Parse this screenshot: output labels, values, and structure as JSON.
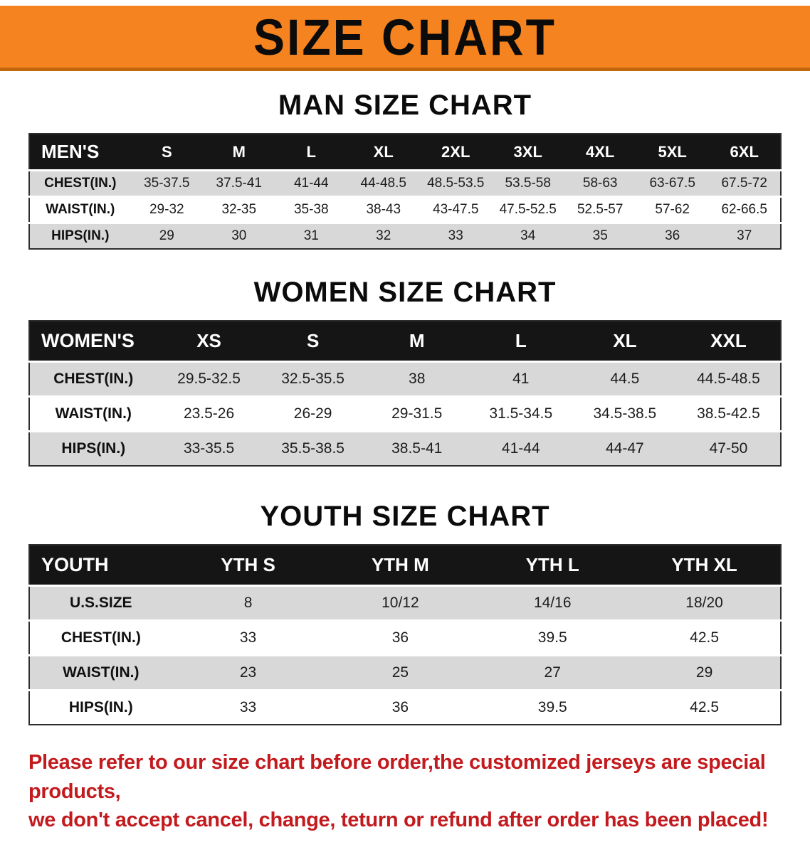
{
  "banner": {
    "title": "SIZE CHART"
  },
  "colors": {
    "banner_bg": "#F5831F",
    "table_header_bg": "#151515",
    "row_stripe": "#D8D8D8",
    "disclaimer_text": "#C31A1E"
  },
  "sections": [
    {
      "heading": "MAN SIZE CHART",
      "table": {
        "header": [
          "MEN'S",
          "S",
          "M",
          "L",
          "XL",
          "2XL",
          "3XL",
          "4XL",
          "5XL",
          "6XL"
        ],
        "rows": [
          [
            "CHEST(IN.)",
            "35-37.5",
            "37.5-41",
            "41-44",
            "44-48.5",
            "48.5-53.5",
            "53.5-58",
            "58-63",
            "63-67.5",
            "67.5-72"
          ],
          [
            "WAIST(IN.)",
            "29-32",
            "32-35",
            "35-38",
            "38-43",
            "43-47.5",
            "47.5-52.5",
            "52.5-57",
            "57-62",
            "62-66.5"
          ],
          [
            "HIPS(IN.)",
            "29",
            "30",
            "31",
            "32",
            "33",
            "34",
            "35",
            "36",
            "37"
          ]
        ]
      }
    },
    {
      "heading": "WOMEN SIZE CHART",
      "table": {
        "header": [
          "WOMEN'S",
          "XS",
          "S",
          "M",
          "L",
          "XL",
          "XXL"
        ],
        "rows": [
          [
            "CHEST(IN.)",
            "29.5-32.5",
            "32.5-35.5",
            "38",
            "41",
            "44.5",
            "44.5-48.5"
          ],
          [
            "WAIST(IN.)",
            "23.5-26",
            "26-29",
            "29-31.5",
            "31.5-34.5",
            "34.5-38.5",
            "38.5-42.5"
          ],
          [
            "HIPS(IN.)",
            "33-35.5",
            "35.5-38.5",
            "38.5-41",
            "41-44",
            "44-47",
            "47-50"
          ]
        ]
      }
    },
    {
      "heading": "YOUTH SIZE CHART",
      "table": {
        "header": [
          "YOUTH",
          "YTH S",
          "YTH M",
          "YTH L",
          "YTH XL"
        ],
        "rows": [
          [
            "U.S.SIZE",
            "8",
            "10/12",
            "14/16",
            "18/20"
          ],
          [
            "CHEST(IN.)",
            "33",
            "36",
            "39.5",
            "42.5"
          ],
          [
            "WAIST(IN.)",
            "23",
            "25",
            "27",
            "29"
          ],
          [
            "HIPS(IN.)",
            "33",
            "36",
            "39.5",
            "42.5"
          ]
        ]
      }
    }
  ],
  "disclaimer": "Please refer to our size chart before order,the customized jerseys are special products, we don't accept cancel, change, teturn or refund after order has been placed!",
  "disclaimer_lines": [
    "Please refer to our size chart before order,the customized jerseys are special products,",
    "we don't accept cancel, change, teturn or refund after order has been placed!"
  ]
}
